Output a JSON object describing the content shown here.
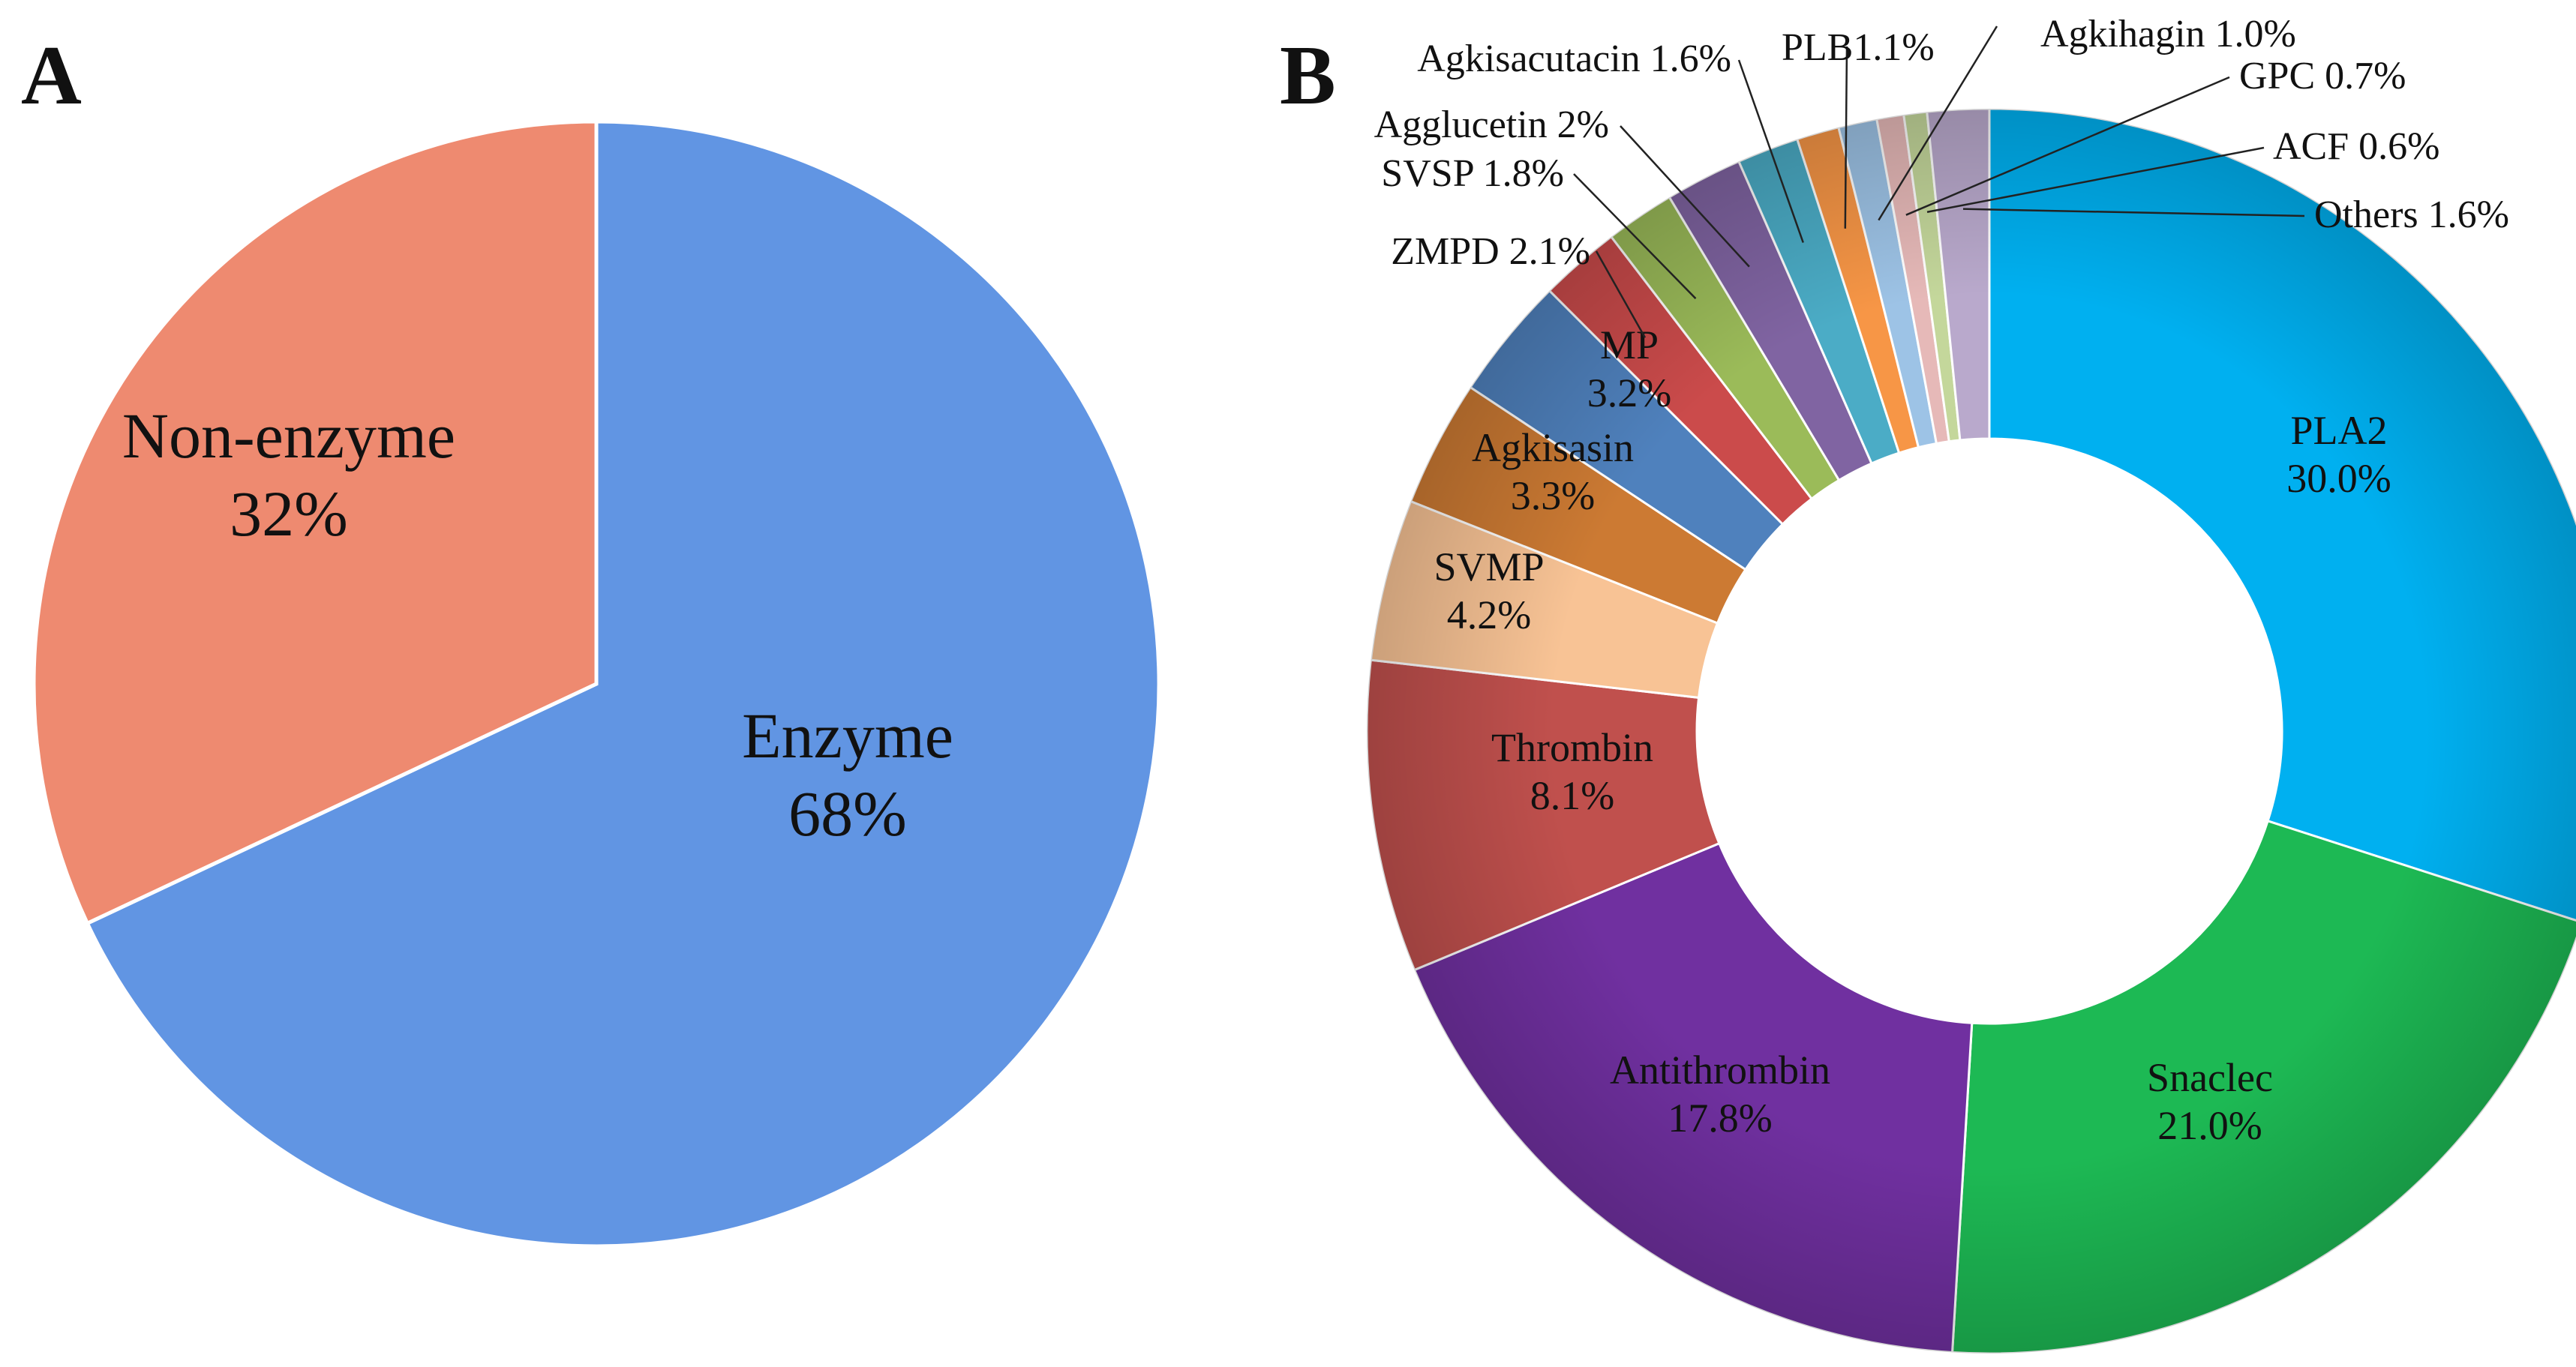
{
  "chart_data": [
    {
      "panel": "A",
      "type": "pie",
      "title": "",
      "start_angle_deg": 0,
      "slices": [
        {
          "name": "Enzyme",
          "value": 68,
          "label": "68%",
          "color": "#6195E3"
        },
        {
          "name": "Non-enzyme",
          "value": 32,
          "label": "32%",
          "color": "#EE8A70"
        }
      ]
    },
    {
      "panel": "B",
      "type": "pie",
      "donut": true,
      "title": "",
      "slices": [
        {
          "name": "PLA2",
          "value": 30.0,
          "label": "30.0%",
          "color": "#00B0F0",
          "label_mode": "inside"
        },
        {
          "name": "Snaclec",
          "value": 21.0,
          "label": "21.0%",
          "color": "#1DB954",
          "label_mode": "inside"
        },
        {
          "name": "Antithrombin",
          "value": 17.8,
          "label": "17.8%",
          "color": "#7030A0",
          "label_mode": "inside"
        },
        {
          "name": "Thrombin",
          "value": 8.1,
          "label": "8.1%",
          "color": "#C0504D",
          "label_mode": "inside"
        },
        {
          "name": "SVMP",
          "value": 4.2,
          "label": "4.2%",
          "color": "#F8C395",
          "label_mode": "inside"
        },
        {
          "name": "Agkisasin",
          "value": 3.3,
          "label": "3.3%",
          "color": "#CC7A33",
          "label_mode": "inside"
        },
        {
          "name": "MP",
          "value": 3.2,
          "label": "3.2%",
          "color": "#4F81BD",
          "label_mode": "inside"
        },
        {
          "name": "ZMPD",
          "value": 2.1,
          "label": "2.1%",
          "color": "#CB4B4B",
          "label_mode": "callout"
        },
        {
          "name": "SVSP",
          "value": 1.8,
          "label": "1.8%",
          "color": "#9BBB59",
          "label_mode": "callout"
        },
        {
          "name": "Agglucetin",
          "value": 2,
          "label": "2%",
          "color": "#8064A2",
          "label_mode": "callout"
        },
        {
          "name": "Agkisacutacin",
          "value": 1.6,
          "label": "1.6%",
          "color": "#4BACC6",
          "label_mode": "callout"
        },
        {
          "name": "PLB",
          "value": 1.1,
          "label": "1.1%",
          "color": "#F79646",
          "label_mode": "callout"
        },
        {
          "name": "Agkihagin",
          "value": 1.0,
          "label": "1.0%",
          "color": "#9DC3E6",
          "label_mode": "callout"
        },
        {
          "name": "GPC",
          "value": 0.7,
          "label": "0.7%",
          "color": "#E6B9B8",
          "label_mode": "callout"
        },
        {
          "name": "ACF",
          "value": 0.6,
          "label": "0.6%",
          "color": "#C4D79B",
          "label_mode": "callout"
        },
        {
          "name": "Others",
          "value": 1.6,
          "label": "1.6%",
          "color": "#B9A9CC",
          "label_mode": "callout"
        }
      ]
    }
  ],
  "panel_labels": {
    "a": "A",
    "b": "B"
  }
}
